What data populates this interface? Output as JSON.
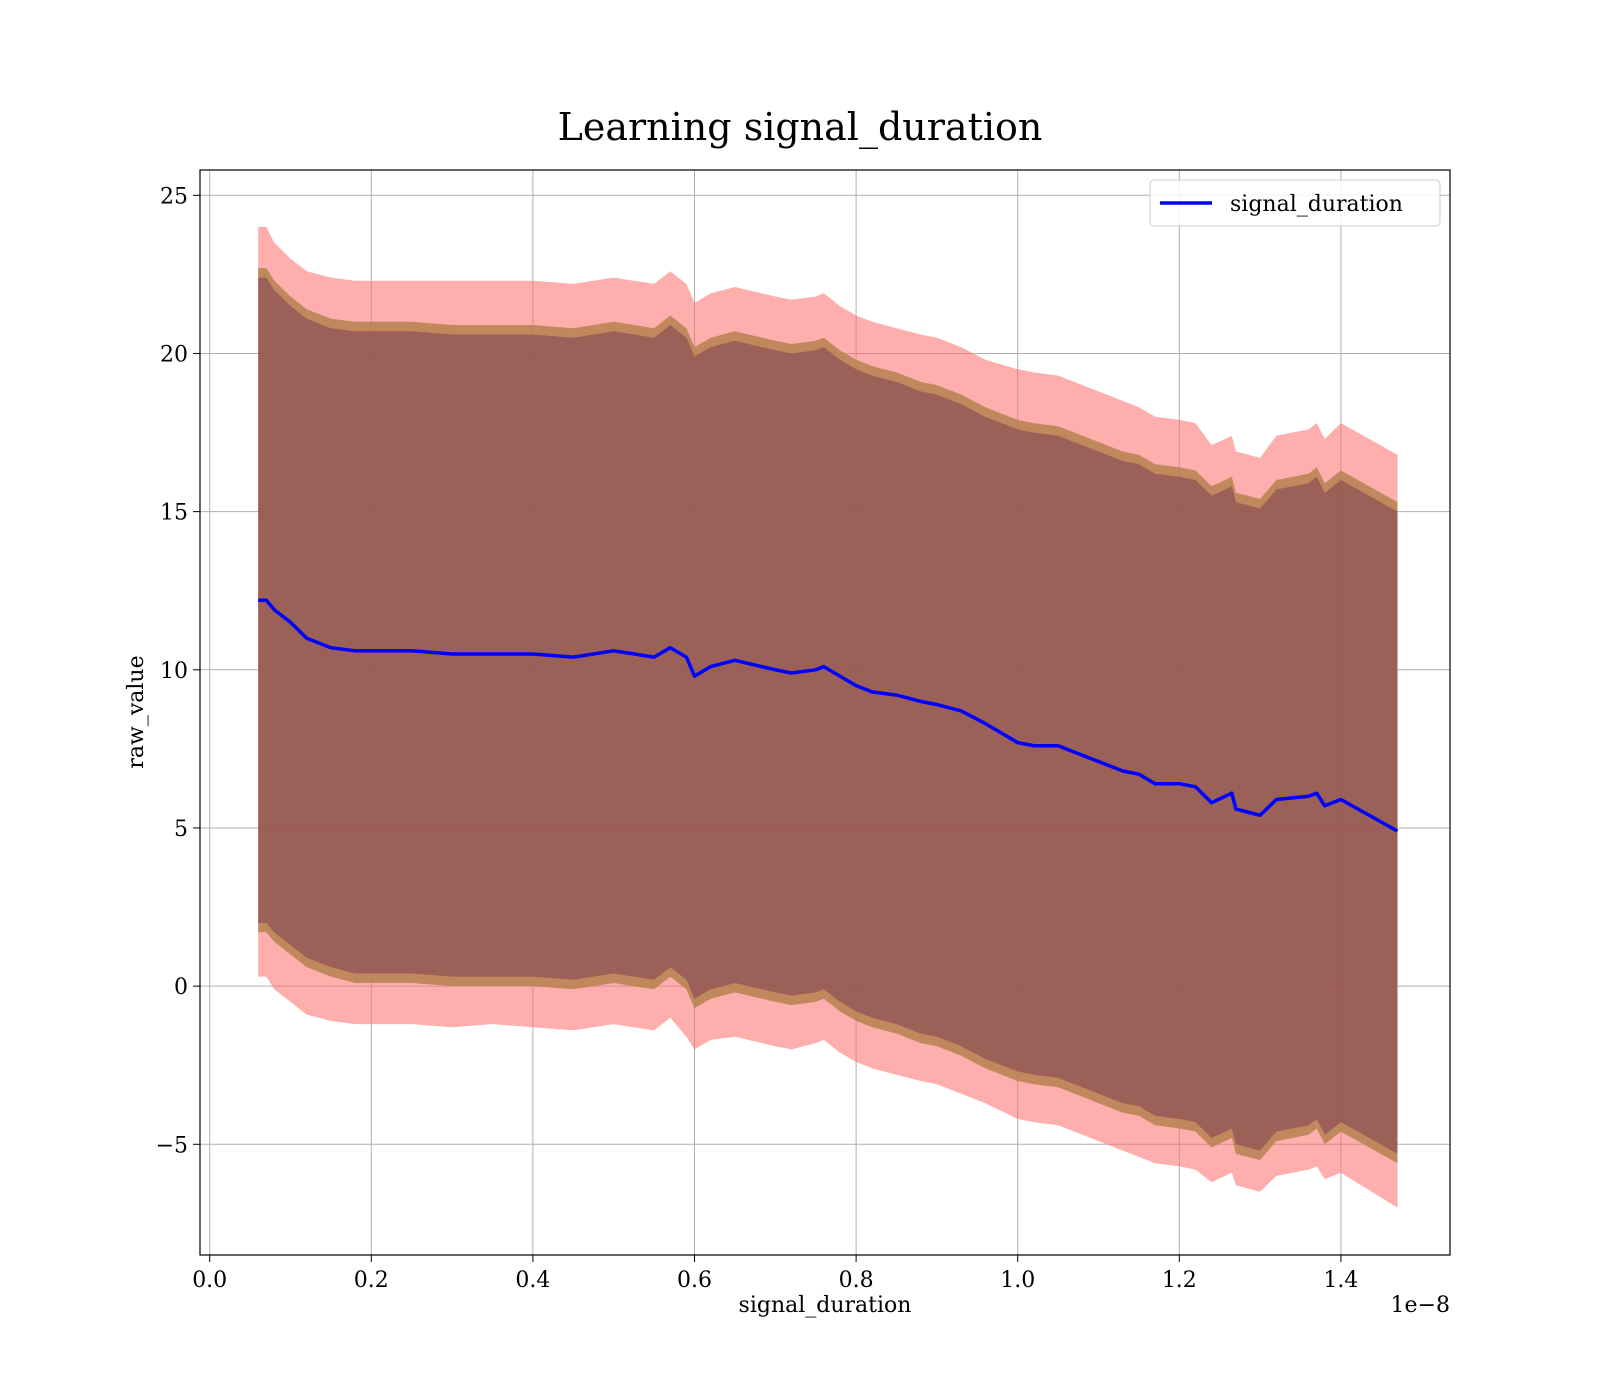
{
  "chart_data": {
    "type": "line",
    "title": "Learning signal_duration",
    "xlabel": "signal_duration",
    "ylabel": "raw_value",
    "x_offset_text": "1e−8",
    "xlim": [
      -0.012,
      1.535
    ],
    "ylim": [
      -8.5,
      25.8
    ],
    "x_ticks": [
      0.0,
      0.2,
      0.4,
      0.6,
      0.8,
      1.0,
      1.2,
      1.4
    ],
    "x_tick_labels": [
      "0.0",
      "0.2",
      "0.4",
      "0.6",
      "0.8",
      "1.0",
      "1.2",
      "1.4"
    ],
    "y_ticks": [
      -5,
      0,
      5,
      10,
      15,
      20,
      25
    ],
    "y_tick_labels": [
      "−5",
      "0",
      "5",
      "10",
      "15",
      "20",
      "25"
    ],
    "grid": true,
    "legend_position": "top-right",
    "colors": {
      "line": "#0000ff",
      "outer_band": "#ff6b6b",
      "middle_band": "#b5834f",
      "inner_band": "#6e2f4f",
      "grid": "#b0b0b0"
    },
    "series": [
      {
        "name": "signal_duration",
        "x": [
          0.06,
          0.07,
          0.08,
          0.1,
          0.12,
          0.15,
          0.18,
          0.2,
          0.25,
          0.3,
          0.35,
          0.4,
          0.45,
          0.5,
          0.55,
          0.57,
          0.59,
          0.6,
          0.62,
          0.65,
          0.7,
          0.72,
          0.75,
          0.76,
          0.78,
          0.8,
          0.82,
          0.85,
          0.88,
          0.9,
          0.93,
          0.96,
          1.0,
          1.02,
          1.05,
          1.08,
          1.1,
          1.13,
          1.15,
          1.17,
          1.2,
          1.22,
          1.24,
          1.265,
          1.27,
          1.3,
          1.32,
          1.36,
          1.37,
          1.38,
          1.4,
          1.47
        ],
        "y": [
          12.2,
          12.2,
          11.9,
          11.5,
          11.0,
          10.7,
          10.6,
          10.6,
          10.6,
          10.5,
          10.5,
          10.5,
          10.4,
          10.6,
          10.4,
          10.7,
          10.4,
          9.8,
          10.1,
          10.3,
          10.0,
          9.9,
          10.0,
          10.1,
          9.8,
          9.5,
          9.3,
          9.2,
          9.0,
          8.9,
          8.7,
          8.3,
          7.7,
          7.6,
          7.6,
          7.3,
          7.1,
          6.8,
          6.7,
          6.4,
          6.4,
          6.3,
          5.8,
          6.1,
          5.6,
          5.4,
          5.9,
          6.0,
          6.1,
          5.7,
          5.9,
          4.9
        ]
      }
    ],
    "bands": [
      {
        "label": "outer",
        "upper": [
          24.0,
          24.0,
          23.5,
          23.0,
          22.6,
          22.4,
          22.3,
          22.3,
          22.3,
          22.3,
          22.3,
          22.3,
          22.2,
          22.4,
          22.2,
          22.6,
          22.2,
          21.6,
          21.9,
          22.1,
          21.8,
          21.7,
          21.8,
          21.9,
          21.5,
          21.2,
          21.0,
          20.8,
          20.6,
          20.5,
          20.2,
          19.8,
          19.5,
          19.4,
          19.3,
          19.0,
          18.8,
          18.5,
          18.3,
          18.0,
          17.9,
          17.8,
          17.1,
          17.4,
          16.9,
          16.7,
          17.4,
          17.6,
          17.8,
          17.3,
          17.8,
          16.8
        ],
        "lower": [
          0.3,
          0.3,
          -0.1,
          -0.5,
          -0.9,
          -1.1,
          -1.2,
          -1.2,
          -1.2,
          -1.3,
          -1.2,
          -1.3,
          -1.4,
          -1.2,
          -1.4,
          -1.0,
          -1.6,
          -2.0,
          -1.7,
          -1.6,
          -1.9,
          -2.0,
          -1.8,
          -1.7,
          -2.1,
          -2.4,
          -2.6,
          -2.8,
          -3.0,
          -3.1,
          -3.4,
          -3.7,
          -4.2,
          -4.3,
          -4.4,
          -4.7,
          -4.9,
          -5.2,
          -5.4,
          -5.6,
          -5.7,
          -5.8,
          -6.2,
          -5.9,
          -6.3,
          -6.5,
          -6.0,
          -5.8,
          -5.7,
          -6.1,
          -5.9,
          -7.0
        ]
      },
      {
        "label": "middle",
        "upper": [
          22.7,
          22.7,
          22.3,
          21.8,
          21.4,
          21.1,
          21.0,
          21.0,
          21.0,
          20.9,
          20.9,
          20.9,
          20.8,
          21.0,
          20.8,
          21.2,
          20.8,
          20.2,
          20.5,
          20.7,
          20.4,
          20.3,
          20.4,
          20.5,
          20.1,
          19.8,
          19.6,
          19.4,
          19.1,
          19.0,
          18.7,
          18.3,
          17.9,
          17.8,
          17.7,
          17.4,
          17.2,
          16.9,
          16.8,
          16.5,
          16.4,
          16.3,
          15.8,
          16.1,
          15.6,
          15.4,
          16.0,
          16.2,
          16.4,
          15.9,
          16.3,
          15.3
        ],
        "lower": [
          1.7,
          1.7,
          1.4,
          1.0,
          0.6,
          0.3,
          0.1,
          0.1,
          0.1,
          0.0,
          0.0,
          0.0,
          -0.1,
          0.1,
          -0.1,
          0.3,
          -0.1,
          -0.7,
          -0.4,
          -0.2,
          -0.5,
          -0.6,
          -0.5,
          -0.4,
          -0.8,
          -1.1,
          -1.3,
          -1.5,
          -1.8,
          -1.9,
          -2.2,
          -2.6,
          -3.0,
          -3.1,
          -3.2,
          -3.5,
          -3.7,
          -4.0,
          -4.1,
          -4.4,
          -4.5,
          -4.6,
          -5.1,
          -4.8,
          -5.3,
          -5.5,
          -4.9,
          -4.7,
          -4.5,
          -5.0,
          -4.6,
          -5.6
        ]
      },
      {
        "label": "inner",
        "upper": [
          22.4,
          22.4,
          22.0,
          21.5,
          21.1,
          20.8,
          20.7,
          20.7,
          20.7,
          20.6,
          20.6,
          20.6,
          20.5,
          20.7,
          20.5,
          20.9,
          20.5,
          19.9,
          20.2,
          20.4,
          20.1,
          20.0,
          20.1,
          20.2,
          19.8,
          19.5,
          19.3,
          19.1,
          18.8,
          18.7,
          18.4,
          18.0,
          17.6,
          17.5,
          17.4,
          17.1,
          16.9,
          16.6,
          16.5,
          16.2,
          16.1,
          16.0,
          15.5,
          15.8,
          15.3,
          15.1,
          15.7,
          15.9,
          16.1,
          15.6,
          16.0,
          15.0
        ],
        "lower": [
          2.0,
          2.0,
          1.7,
          1.3,
          0.9,
          0.6,
          0.4,
          0.4,
          0.4,
          0.3,
          0.3,
          0.3,
          0.2,
          0.4,
          0.2,
          0.6,
          0.2,
          -0.4,
          -0.1,
          0.1,
          -0.2,
          -0.3,
          -0.2,
          -0.1,
          -0.5,
          -0.8,
          -1.0,
          -1.2,
          -1.5,
          -1.6,
          -1.9,
          -2.3,
          -2.7,
          -2.8,
          -2.9,
          -3.2,
          -3.4,
          -3.7,
          -3.8,
          -4.1,
          -4.2,
          -4.3,
          -4.8,
          -4.5,
          -5.0,
          -5.2,
          -4.6,
          -4.4,
          -4.2,
          -4.7,
          -4.3,
          -5.3
        ]
      }
    ]
  }
}
